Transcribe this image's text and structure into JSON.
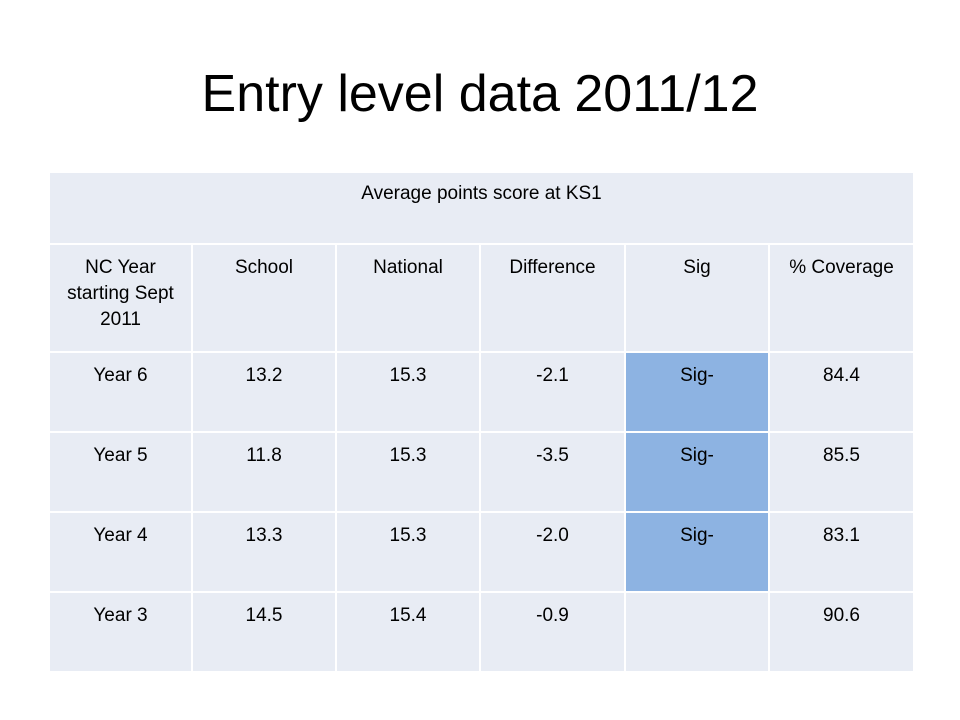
{
  "slide": {
    "title": "Entry level data 2011/12"
  },
  "table": {
    "caption": "Average points score at KS1",
    "headers": [
      "NC Year starting Sept 2011",
      "School",
      "National",
      "Difference",
      "Sig",
      "% Coverage"
    ],
    "rows": [
      {
        "year": "Year 6",
        "school": "13.2",
        "national": "15.3",
        "difference": "-2.1",
        "sig": "Sig-",
        "coverage": "84.4"
      },
      {
        "year": "Year 5",
        "school": "11.8",
        "national": "15.3",
        "difference": "-3.5",
        "sig": "Sig-",
        "coverage": "85.5"
      },
      {
        "year": "Year 4",
        "school": "13.3",
        "national": "15.3",
        "difference": "-2.0",
        "sig": "Sig-",
        "coverage": "83.1"
      },
      {
        "year": "Year 3",
        "school": "14.5",
        "national": "15.4",
        "difference": "-0.9",
        "sig": "",
        "coverage": "90.6"
      }
    ]
  },
  "colors": {
    "cell_background": "#e8ecf4",
    "sig_highlight": "#8db3e2"
  }
}
